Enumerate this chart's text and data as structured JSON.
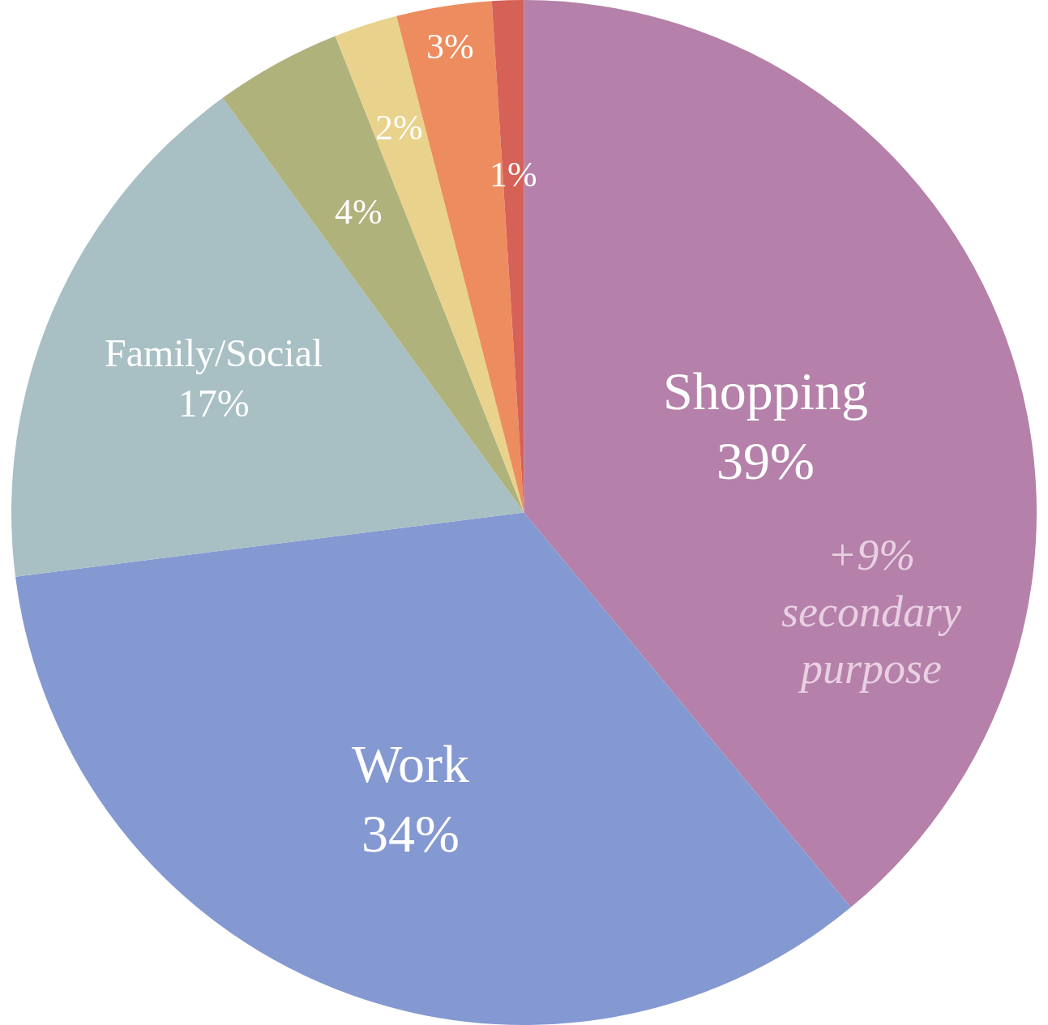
{
  "chart_data": {
    "type": "pie",
    "categories": [
      "Shopping",
      "Work",
      "Family/Social",
      null,
      null,
      null,
      null
    ],
    "values": [
      39,
      34,
      17,
      4,
      2,
      3,
      1
    ],
    "value_labels": [
      "39%",
      "34%",
      "17%",
      "4%",
      "2%",
      "3%",
      "1%"
    ],
    "colors": [
      "#b580a9",
      "#8498d1",
      "#a8bfc4",
      "#b0b27c",
      "#e8d28c",
      "#ed8c5e",
      "#d66157"
    ],
    "annotations": [
      "+9%\nsecondary\npurpose"
    ],
    "legend": false
  }
}
